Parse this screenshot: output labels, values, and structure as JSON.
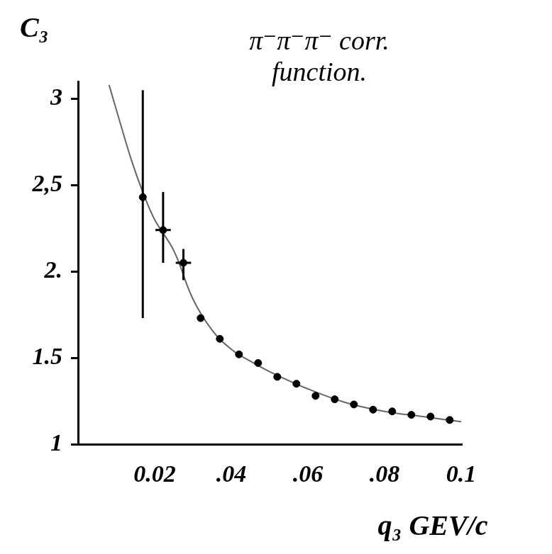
{
  "chart_data": {
    "type": "scatter",
    "title": "π⁻π⁻π⁻ corr. function.",
    "x_label": "q₃ GEV/c",
    "y_label": "C₃",
    "xlim": [
      0,
      0.1
    ],
    "xticks": [
      0.02,
      {
        "value": 0.04,
        "label": ".04"
      },
      {
        "value": 0.06,
        "label": ".06"
      },
      {
        "value": 0.08,
        "label": ".08"
      },
      0.1
    ],
    "ylim": [
      1,
      3.1
    ],
    "yticks": [
      1,
      1.5,
      {
        "value": 2,
        "label": "2."
      },
      {
        "value": 2.5,
        "label": "2,5"
      },
      3
    ],
    "grid": false,
    "series": [
      {
        "type": "scatter",
        "color": "#000000",
        "marker": "circle",
        "x": [
          0.0169,
          0.0222,
          0.0275,
          0.032,
          0.037,
          0.042,
          0.047,
          0.052,
          0.057,
          0.062,
          0.067,
          0.072,
          0.077,
          0.082,
          0.087,
          0.092,
          0.097
        ],
        "values": [
          2.43,
          2.24,
          2.05,
          1.73,
          1.61,
          1.52,
          1.47,
          1.39,
          1.35,
          1.28,
          1.26,
          1.23,
          1.2,
          1.19,
          1.17,
          1.16,
          1.14
        ],
        "y_error_low": [
          1.73,
          2.05,
          1.95,
          null,
          null,
          null,
          null,
          null,
          null,
          null,
          null,
          null,
          null,
          null,
          null,
          null,
          null
        ],
        "y_error_high": [
          3.05,
          2.46,
          2.13,
          null,
          null,
          null,
          null,
          null,
          null,
          null,
          null,
          null,
          null,
          null,
          null,
          null,
          null
        ],
        "x_error": [
          null,
          0.002,
          0.002,
          null,
          null,
          null,
          null,
          null,
          null,
          null,
          null,
          null,
          null,
          null,
          null,
          null,
          null
        ]
      },
      {
        "type": "line",
        "color": "#666666",
        "line_style": "solid",
        "x": [
          0.0081,
          0.011,
          0.014,
          0.0169,
          0.02,
          0.025,
          0.03,
          0.035,
          0.04,
          0.045,
          0.05,
          0.06,
          0.07,
          0.08,
          0.09,
          0.1
        ],
        "values": [
          3.08,
          2.86,
          2.64,
          2.46,
          2.3,
          2.12,
          1.84,
          1.66,
          1.55,
          1.48,
          1.42,
          1.32,
          1.24,
          1.19,
          1.16,
          1.13
        ]
      }
    ]
  }
}
